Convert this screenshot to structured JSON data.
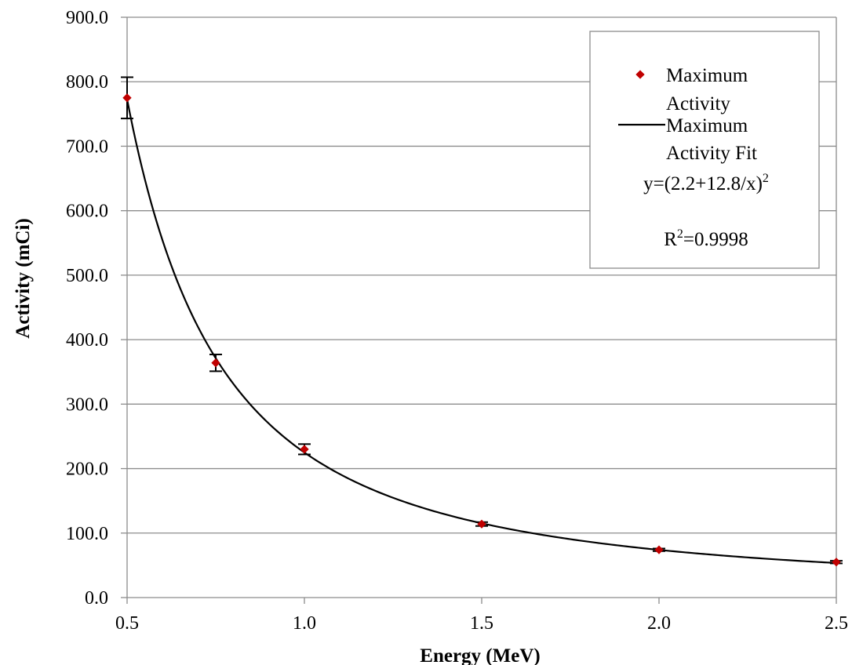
{
  "chart_data": {
    "type": "scatter",
    "title": "",
    "xlabel": "Energy (MeV)",
    "ylabel": "Activity (mCi)",
    "xlim": [
      0.5,
      2.5
    ],
    "ylim": [
      0,
      900
    ],
    "x_ticks": [
      "0.5",
      "1.0",
      "1.5",
      "2.0",
      "2.5"
    ],
    "y_ticks": [
      "0.0",
      "100.0",
      "200.0",
      "300.0",
      "400.0",
      "500.0",
      "600.0",
      "700.0",
      "800.0",
      "900.0"
    ],
    "grid": "horizontal",
    "legend_position": "top-right",
    "colors": {
      "marker": "#c00000",
      "fit_line": "#000000",
      "grid": "#8c8c8c"
    },
    "series": [
      {
        "name": "Maximum Activity",
        "type": "scatter",
        "x": [
          0.5,
          0.75,
          1.0,
          1.5,
          2.0,
          2.5
        ],
        "y": [
          775,
          364,
          230,
          114,
          74,
          55
        ],
        "error": [
          32,
          13,
          8,
          3,
          2,
          2
        ]
      },
      {
        "name": "Maximum Activity Fit",
        "type": "line",
        "fit_a": 2.2,
        "fit_b": 12.8
      }
    ],
    "legend": {
      "entries": [
        {
          "line1": "Maximum",
          "line2": "Activity"
        },
        {
          "line1": "Maximum",
          "line2": "Activity Fit"
        }
      ],
      "equation": "y=(2.2+12.8/x)",
      "equation_sup": "2",
      "r2_prefix": "R",
      "r2_sup": "2",
      "r2_value": "=0.9998"
    }
  }
}
